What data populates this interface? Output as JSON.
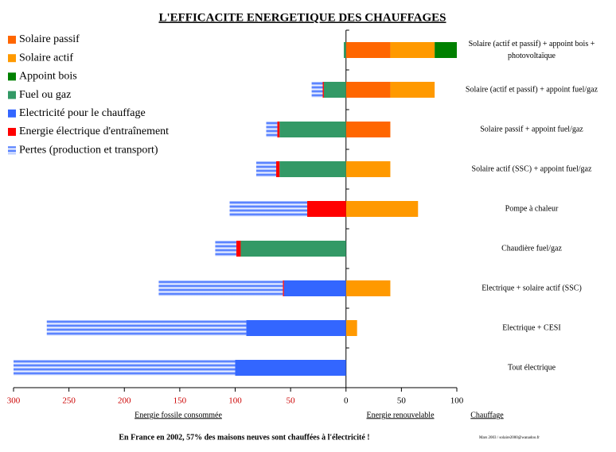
{
  "chart_data": {
    "type": "bar",
    "orientation": "horizontal",
    "stacked": true,
    "title": "L'EFFICACITE ENERGETIQUE DES CHAUFFAGES",
    "categories": [
      "Solaire (actif et passif) + appoint bois + photovoltaïque",
      "Solaire (actif et passif) + appoint fuel/gaz",
      "Solaire passif + appoint fuel/gaz",
      "Solaire actif (SSC) + appoint fuel/gaz",
      "Pompe à chaleur",
      "Chaudière fuel/gaz",
      "Electrique + solaire actif (SSC)",
      "Electrique + CESI",
      "Tout électrique"
    ],
    "series": [
      {
        "name": "Solaire passif",
        "color": "#ff6600",
        "values": [
          40,
          40,
          40,
          null,
          null,
          null,
          null,
          null,
          null
        ]
      },
      {
        "name": "Solaire actif",
        "color": "#ff9900",
        "values": [
          40,
          40,
          null,
          40,
          65,
          null,
          40,
          10,
          null
        ]
      },
      {
        "name": "Appoint bois",
        "color": "#008000",
        "values": [
          20,
          null,
          null,
          null,
          null,
          null,
          null,
          null,
          null
        ]
      },
      {
        "name": "Fuel ou gaz",
        "color": "#339966",
        "values": [
          -2,
          -20,
          -60,
          -60,
          null,
          -95,
          null,
          null,
          null
        ]
      },
      {
        "name": "Electricité pour le  chauffage",
        "color": "#3366ff",
        "values": [
          null,
          null,
          null,
          null,
          null,
          null,
          -56,
          -90,
          -100
        ]
      },
      {
        "name": "Energie électrique d'entraînement",
        "color": "#ff0000",
        "values": [
          null,
          -1,
          -2,
          -3,
          -35,
          -4,
          -1,
          null,
          null
        ]
      },
      {
        "name": "Pertes (production et transport)",
        "color": "#3366ff",
        "pattern": "striped",
        "values": [
          null,
          -10,
          -10,
          -18,
          -70,
          -19,
          -112,
          -180,
          -200
        ]
      }
    ],
    "xlim": [
      -300,
      100
    ],
    "xticks": [
      {
        "value": -300,
        "label": "300"
      },
      {
        "value": -250,
        "label": "250"
      },
      {
        "value": -200,
        "label": "200"
      },
      {
        "value": -150,
        "label": "150"
      },
      {
        "value": -100,
        "label": "100"
      },
      {
        "value": -50,
        "label": "50"
      },
      0,
      50,
      100
    ],
    "xlabel_left": "Energie fossile consommée",
    "xlabel_right": "Energie renouvelable",
    "category_axis_label": "Chauffage",
    "legend": "top-left",
    "note": "En France en 2002, 57% des maisons neuves sont chauffées à l'électricité !",
    "credit": "Mars 2003 / solaire2000@wanadoo.fr"
  }
}
